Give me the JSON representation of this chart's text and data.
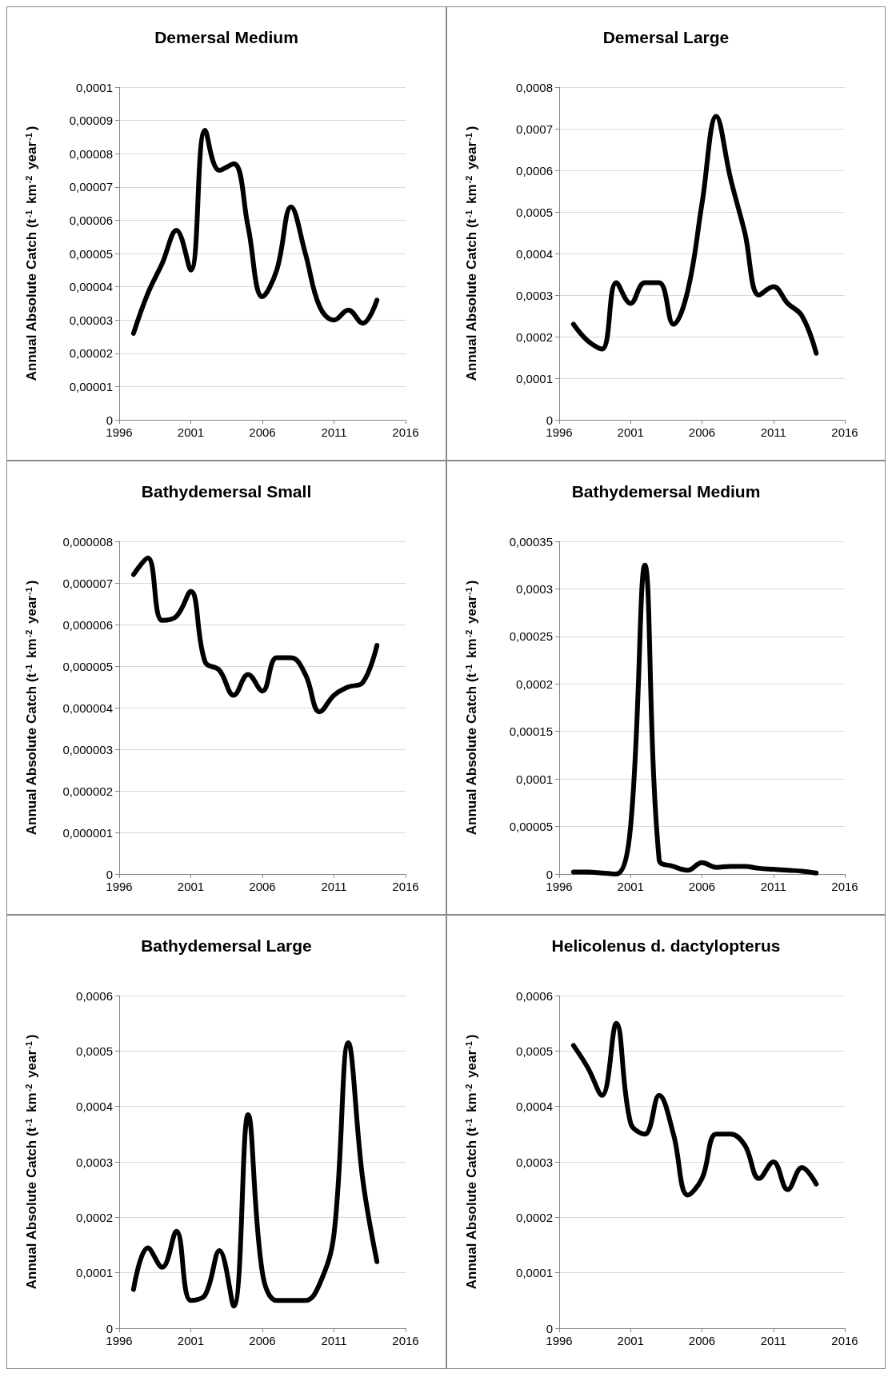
{
  "chart_data": [
    {
      "type": "line",
      "title": "Demersal Medium",
      "ylabel": "Annual Absolute Catch (t$^{-1}$ km$^{-2}$ year$^{-1}$)",
      "x": [
        1997,
        1998,
        1999,
        2000,
        2001,
        2002,
        2003,
        2004,
        2005,
        2006,
        2007,
        2008,
        2009,
        2010,
        2011,
        2012,
        2013,
        2014
      ],
      "series": [
        {
          "color": "#000000",
          "values": [
            2.6e-05,
            3.8e-05,
            4.7e-05,
            5.7e-05,
            4.5e-05,
            8.7e-05,
            7.5e-05,
            7.7e-05,
            5.8e-05,
            3.7e-05,
            4.5e-05,
            6.4e-05,
            5e-05,
            3.4e-05,
            3e-05,
            3.3e-05,
            2.9e-05,
            3.6e-05
          ]
        }
      ],
      "xlim": [
        1996,
        2016
      ],
      "xticks": [
        1996,
        2001,
        2006,
        2011,
        2016
      ],
      "ylim": [
        0,
        0.0001
      ],
      "yticks": [
        {
          "value": 0,
          "label": "0"
        },
        {
          "value": 1e-05,
          "label": "0,00001"
        },
        {
          "value": 2e-05,
          "label": "0,00002"
        },
        {
          "value": 3e-05,
          "label": "0,00003"
        },
        {
          "value": 4e-05,
          "label": "0,00004"
        },
        {
          "value": 5e-05,
          "label": "0,00005"
        },
        {
          "value": 6e-05,
          "label": "0,00006"
        },
        {
          "value": 7e-05,
          "label": "0,00007"
        },
        {
          "value": 8e-05,
          "label": "0,00008"
        },
        {
          "value": 9e-05,
          "label": "0,00009"
        },
        {
          "value": 0.0001,
          "label": "0,0001"
        }
      ],
      "grid": "y"
    },
    {
      "type": "line",
      "title": "Demersal Large",
      "ylabel": "Annual Absolute Catch (t$^{-1}$ km$^{-2}$ year$^{-1}$)",
      "x": [
        1997,
        1998,
        1999,
        2000,
        2001,
        2002,
        2003,
        2004,
        2005,
        2006,
        2007,
        2008,
        2009,
        2010,
        2011,
        2012,
        2013,
        2014
      ],
      "series": [
        {
          "color": "#000000",
          "values": [
            0.00023,
            0.00019,
            0.00017,
            0.00033,
            0.00028,
            0.00033,
            0.00033,
            0.00023,
            0.00031,
            0.00052,
            0.00073,
            0.00058,
            0.00045,
            0.0003,
            0.00032,
            0.00028,
            0.00025,
            0.00016
          ]
        }
      ],
      "xlim": [
        1996,
        2016
      ],
      "xticks": [
        1996,
        2001,
        2006,
        2011,
        2016
      ],
      "ylim": [
        0,
        0.0008
      ],
      "yticks": [
        {
          "value": 0,
          "label": "0"
        },
        {
          "value": 0.0001,
          "label": "0,0001"
        },
        {
          "value": 0.0002,
          "label": "0,0002"
        },
        {
          "value": 0.0003,
          "label": "0,0003"
        },
        {
          "value": 0.0004,
          "label": "0,0004"
        },
        {
          "value": 0.0005,
          "label": "0,0005"
        },
        {
          "value": 0.0006,
          "label": "0,0006"
        },
        {
          "value": 0.0007,
          "label": "0,0007"
        },
        {
          "value": 0.0008,
          "label": "0,0008"
        }
      ],
      "grid": "y"
    },
    {
      "type": "line",
      "title": "Bathydemersal Small",
      "ylabel": "Annual Absolute Catch (t$^{-1}$ km$^{-2}$ year$^{-1}$)",
      "x": [
        1997,
        1998,
        1999,
        2000,
        2001,
        2002,
        2003,
        2004,
        2005,
        2006,
        2007,
        2008,
        2009,
        2010,
        2011,
        2012,
        2013,
        2014
      ],
      "series": [
        {
          "color": "#000000",
          "values": [
            7.2e-06,
            7.6e-06,
            6.1e-06,
            6.2e-06,
            6.8e-06,
            5.1e-06,
            4.9e-06,
            4.3e-06,
            4.8e-06,
            4.4e-06,
            5.2e-06,
            5.2e-06,
            4.8e-06,
            3.9e-06,
            4.3e-06,
            4.5e-06,
            4.6e-06,
            5.5e-06
          ]
        }
      ],
      "xlim": [
        1996,
        2016
      ],
      "xticks": [
        1996,
        2001,
        2006,
        2011,
        2016
      ],
      "ylim": [
        0,
        8e-06
      ],
      "yticks": [
        {
          "value": 0,
          "label": "0"
        },
        {
          "value": 1e-06,
          "label": "0,000001"
        },
        {
          "value": 2e-06,
          "label": "0,000002"
        },
        {
          "value": 3e-06,
          "label": "0,000003"
        },
        {
          "value": 4e-06,
          "label": "0,000004"
        },
        {
          "value": 5e-06,
          "label": "0,000005"
        },
        {
          "value": 6e-06,
          "label": "0,000006"
        },
        {
          "value": 7e-06,
          "label": "0,000007"
        },
        {
          "value": 8e-06,
          "label": "0,000008"
        }
      ],
      "grid": "y"
    },
    {
      "type": "line",
      "title": "Bathydemersal Medium",
      "ylabel": "Annual Absolute Catch (t$^{-1}$ km$^{-2}$ year$^{-1}$)",
      "x": [
        1997,
        1998,
        1999,
        2000,
        2001,
        2002,
        2003,
        2004,
        2005,
        2006,
        2007,
        2008,
        2009,
        2010,
        2011,
        2012,
        2013,
        2014
      ],
      "series": [
        {
          "color": "#000000",
          "values": [
            2e-06,
            2e-06,
            1e-06,
            0,
            5e-05,
            0.000325,
            1.5e-05,
            8e-06,
            4e-06,
            1.2e-05,
            7e-06,
            8e-06,
            8e-06,
            6e-06,
            5e-06,
            4e-06,
            3e-06,
            1e-06
          ]
        }
      ],
      "xlim": [
        1996,
        2016
      ],
      "xticks": [
        1996,
        2001,
        2006,
        2011,
        2016
      ],
      "ylim": [
        0,
        0.00035
      ],
      "yticks": [
        {
          "value": 0,
          "label": "0"
        },
        {
          "value": 5e-05,
          "label": "0,00005"
        },
        {
          "value": 0.0001,
          "label": "0,0001"
        },
        {
          "value": 0.00015,
          "label": "0,00015"
        },
        {
          "value": 0.0002,
          "label": "0,0002"
        },
        {
          "value": 0.00025,
          "label": "0,00025"
        },
        {
          "value": 0.0003,
          "label": "0,0003"
        },
        {
          "value": 0.00035,
          "label": "0,00035"
        }
      ],
      "grid": "y"
    },
    {
      "type": "line",
      "title": "Bathydemersal Large",
      "ylabel": "Annual Absolute Catch (t$^{-1}$ km$^{-2}$ year$^{-1}$)",
      "x": [
        1997,
        1998,
        1999,
        2000,
        2001,
        2002,
        2003,
        2004,
        2005,
        2006,
        2007,
        2008,
        2009,
        2010,
        2011,
        2012,
        2013,
        2014
      ],
      "series": [
        {
          "color": "#000000",
          "values": [
            7e-05,
            0.000145,
            0.00011,
            0.000175,
            5e-05,
            6e-05,
            0.00014,
            4e-05,
            0.000385,
            0.0001,
            5e-05,
            5e-05,
            5e-05,
            8e-05,
            0.00017,
            0.000515,
            0.00027,
            0.00012
          ]
        }
      ],
      "xlim": [
        1996,
        2016
      ],
      "xticks": [
        1996,
        2001,
        2006,
        2011,
        2016
      ],
      "ylim": [
        0,
        0.0006
      ],
      "yticks": [
        {
          "value": 0,
          "label": "0"
        },
        {
          "value": 0.0001,
          "label": "0,0001"
        },
        {
          "value": 0.0002,
          "label": "0,0002"
        },
        {
          "value": 0.0003,
          "label": "0,0003"
        },
        {
          "value": 0.0004,
          "label": "0,0004"
        },
        {
          "value": 0.0005,
          "label": "0,0005"
        },
        {
          "value": 0.0006,
          "label": "0,0006"
        }
      ],
      "grid": "y"
    },
    {
      "type": "line",
      "title": "Helicolenus d. dactylopterus",
      "ylabel": "Annual Absolute Catch (t$^{-1}$ km$^{-2}$ year$^{-1}$)",
      "x": [
        1997,
        1998,
        1999,
        2000,
        2001,
        2002,
        2003,
        2004,
        2005,
        2006,
        2007,
        2008,
        2009,
        2010,
        2011,
        2012,
        2013,
        2014
      ],
      "series": [
        {
          "color": "#000000",
          "values": [
            0.00051,
            0.00047,
            0.00042,
            0.00055,
            0.00037,
            0.00035,
            0.00042,
            0.00035,
            0.00024,
            0.00027,
            0.00035,
            0.00035,
            0.00033,
            0.00027,
            0.0003,
            0.00025,
            0.00029,
            0.00026
          ]
        }
      ],
      "xlim": [
        1996,
        2016
      ],
      "xticks": [
        1996,
        2001,
        2006,
        2011,
        2016
      ],
      "ylim": [
        0,
        0.0006
      ],
      "yticks": [
        {
          "value": 0,
          "label": "0"
        },
        {
          "value": 0.0001,
          "label": "0,0001"
        },
        {
          "value": 0.0002,
          "label": "0,0002"
        },
        {
          "value": 0.0003,
          "label": "0,0003"
        },
        {
          "value": 0.0004,
          "label": "0,0004"
        },
        {
          "value": 0.0005,
          "label": "0,0005"
        },
        {
          "value": 0.0006,
          "label": "0,0006"
        }
      ],
      "grid": "y"
    }
  ]
}
